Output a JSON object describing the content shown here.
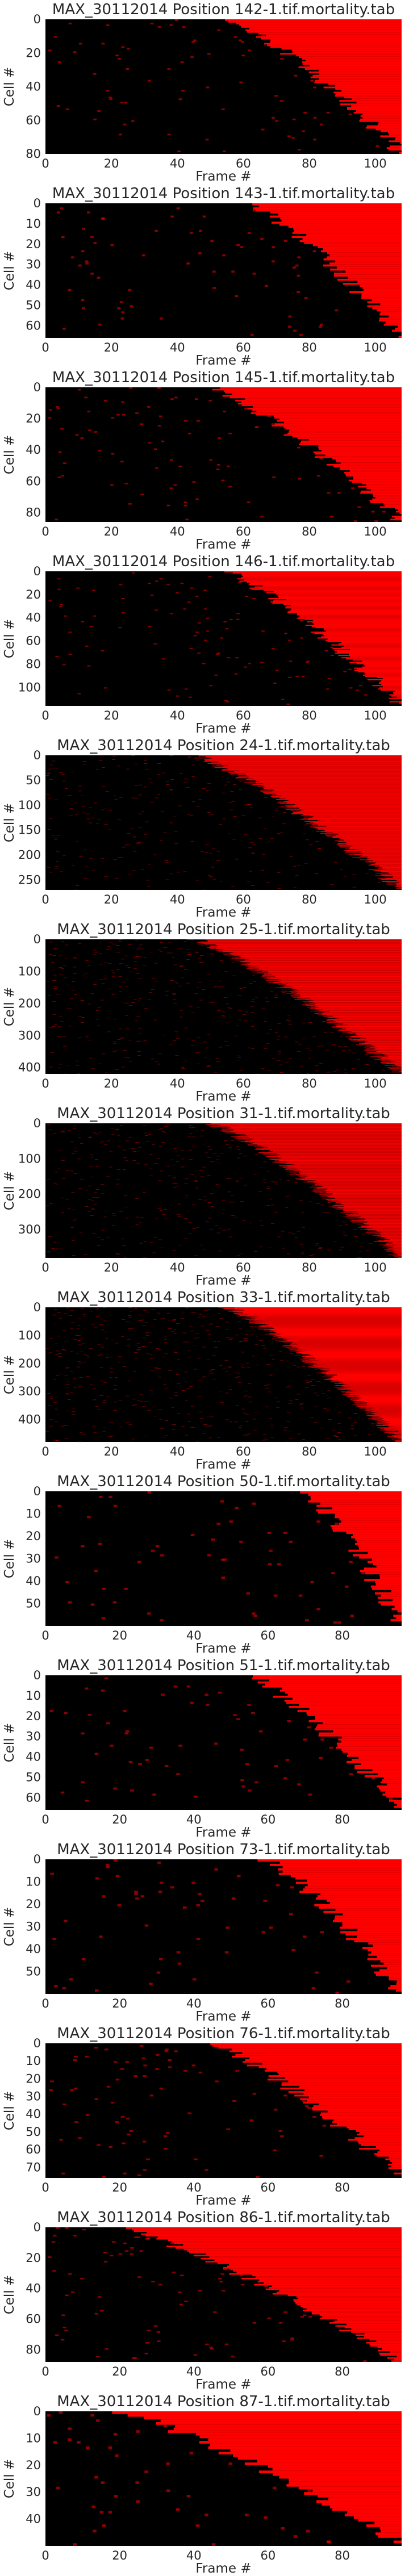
{
  "figure": {
    "background": "#ffffff",
    "text_color": "#262626",
    "heatmap_low_color": "#000000",
    "heatmap_high_color": "#ff0000"
  },
  "chart_data": [
    {
      "type": "heatmap",
      "title": "MAX_30112014 Position 142-1.tif.mortality.tab",
      "xlabel": "Frame #",
      "ylabel": "Cell #",
      "xlim": [
        0,
        108
      ],
      "ylim": [
        0,
        80
      ],
      "xticks": [
        0,
        20,
        40,
        60,
        80,
        100
      ],
      "yticks": [
        0,
        20,
        40,
        60,
        80
      ],
      "rows": 80,
      "frames": 108,
      "values": "binary 0/1 per cell per frame; cells sorted by onset of red state",
      "onset_range": [
        56,
        108
      ],
      "colors": {
        "0": "#000000",
        "1": "#ff0000"
      }
    },
    {
      "type": "heatmap",
      "title": "MAX_30112014 Position 143-1.tif.mortality.tab",
      "xlabel": "Frame #",
      "ylabel": "Cell #",
      "xlim": [
        0,
        108
      ],
      "ylim": [
        0,
        66
      ],
      "xticks": [
        0,
        20,
        40,
        60,
        80,
        100
      ],
      "yticks": [
        0,
        10,
        20,
        30,
        40,
        50,
        60
      ],
      "rows": 66,
      "frames": 108,
      "values": "binary 0/1 per cell per frame; cells sorted by onset of red state",
      "onset_range": [
        62,
        108
      ],
      "colors": {
        "0": "#000000",
        "1": "#ff0000"
      }
    },
    {
      "type": "heatmap",
      "title": "MAX_30112014 Position 145-1.tif.mortality.tab",
      "xlabel": "Frame #",
      "ylabel": "Cell #",
      "xlim": [
        0,
        108
      ],
      "ylim": [
        0,
        86
      ],
      "xticks": [
        0,
        20,
        40,
        60,
        80,
        100
      ],
      "yticks": [
        0,
        20,
        40,
        60,
        80
      ],
      "rows": 86,
      "frames": 108,
      "values": "binary 0/1 per cell per frame; cells sorted by onset of red state",
      "onset_range": [
        50,
        108
      ],
      "colors": {
        "0": "#000000",
        "1": "#ff0000"
      }
    },
    {
      "type": "heatmap",
      "title": "MAX_30112014 Position 146-1.tif.mortality.tab",
      "xlabel": "Frame #",
      "ylabel": "Cell #",
      "xlim": [
        0,
        108
      ],
      "ylim": [
        0,
        116
      ],
      "xticks": [
        0,
        20,
        40,
        60,
        80,
        100
      ],
      "yticks": [
        0,
        20,
        40,
        60,
        80,
        100
      ],
      "rows": 116,
      "frames": 108,
      "values": "binary 0/1 per cell per frame; cells sorted by onset of red state",
      "onset_range": [
        55,
        108
      ],
      "colors": {
        "0": "#000000",
        "1": "#ff0000"
      }
    },
    {
      "type": "heatmap",
      "title": "MAX_30112014 Position 24-1.tif.mortality.tab",
      "xlabel": "Frame #",
      "ylabel": "Cell #",
      "xlim": [
        0,
        108
      ],
      "ylim": [
        0,
        270
      ],
      "xticks": [
        0,
        20,
        40,
        60,
        80,
        100
      ],
      "yticks": [
        0,
        50,
        100,
        150,
        200,
        250
      ],
      "rows": 270,
      "frames": 108,
      "values": "binary 0/1 per cell per frame; cells sorted by onset of red state",
      "onset_range": [
        45,
        108
      ],
      "colors": {
        "0": "#000000",
        "1": "#ff0000"
      }
    },
    {
      "type": "heatmap",
      "title": "MAX_30112014 Position 25-1.tif.mortality.tab",
      "xlabel": "Frame #",
      "ylabel": "Cell #",
      "xlim": [
        0,
        108
      ],
      "ylim": [
        0,
        420
      ],
      "xticks": [
        0,
        20,
        40,
        60,
        80,
        100
      ],
      "yticks": [
        0,
        100,
        200,
        300,
        400
      ],
      "rows": 420,
      "frames": 108,
      "values": "binary 0/1 per cell per frame; cells sorted by onset of red state",
      "onset_range": [
        45,
        108
      ],
      "colors": {
        "0": "#000000",
        "1": "#ff0000"
      }
    },
    {
      "type": "heatmap",
      "title": "MAX_30112014 Position 31-1.tif.mortality.tab",
      "xlabel": "Frame #",
      "ylabel": "Cell #",
      "xlim": [
        0,
        108
      ],
      "ylim": [
        0,
        380
      ],
      "xticks": [
        0,
        20,
        40,
        60,
        80,
        100
      ],
      "yticks": [
        0,
        100,
        200,
        300
      ],
      "rows": 380,
      "frames": 108,
      "values": "binary 0/1 per cell per frame; cells sorted by onset of red state",
      "onset_range": [
        50,
        108
      ],
      "colors": {
        "0": "#000000",
        "1": "#ff0000"
      }
    },
    {
      "type": "heatmap",
      "title": "MAX_30112014 Position 33-1.tif.mortality.tab",
      "xlabel": "Frame #",
      "ylabel": "Cell #",
      "xlim": [
        0,
        108
      ],
      "ylim": [
        0,
        480
      ],
      "xticks": [
        0,
        20,
        40,
        60,
        80,
        100
      ],
      "yticks": [
        0,
        100,
        200,
        300,
        400
      ],
      "rows": 480,
      "frames": 108,
      "values": "binary 0/1 per cell per frame; cells sorted by onset of red state",
      "onset_range": [
        55,
        108
      ],
      "colors": {
        "0": "#000000",
        "1": "#ff0000"
      }
    },
    {
      "type": "heatmap",
      "title": "MAX_30112014 Position 50-1.tif.mortality.tab",
      "xlabel": "Frame #",
      "ylabel": "Cell #",
      "xlim": [
        0,
        96
      ],
      "ylim": [
        0,
        60
      ],
      "xticks": [
        0,
        20,
        40,
        60,
        80
      ],
      "yticks": [
        0,
        10,
        20,
        30,
        40,
        50
      ],
      "rows": 60,
      "frames": 96,
      "values": "binary 0/1 per cell per frame; cells sorted by onset of red state",
      "onset_range": [
        70,
        96
      ],
      "colors": {
        "0": "#000000",
        "1": "#ff0000"
      }
    },
    {
      "type": "heatmap",
      "title": "MAX_30112014 Position 51-1.tif.mortality.tab",
      "xlabel": "Frame #",
      "ylabel": "Cell #",
      "xlim": [
        0,
        96
      ],
      "ylim": [
        0,
        66
      ],
      "xticks": [
        0,
        20,
        40,
        60,
        80
      ],
      "yticks": [
        0,
        10,
        20,
        30,
        40,
        50,
        60
      ],
      "rows": 66,
      "frames": 96,
      "values": "binary 0/1 per cell per frame; cells sorted by onset of red state",
      "onset_range": [
        55,
        96
      ],
      "colors": {
        "0": "#000000",
        "1": "#ff0000"
      }
    },
    {
      "type": "heatmap",
      "title": "MAX_30112014 Position 73-1.tif.mortality.tab",
      "xlabel": "Frame #",
      "ylabel": "Cell #",
      "xlim": [
        0,
        96
      ],
      "ylim": [
        0,
        60
      ],
      "xticks": [
        0,
        20,
        40,
        60,
        80
      ],
      "yticks": [
        0,
        10,
        20,
        30,
        40,
        50
      ],
      "rows": 60,
      "frames": 96,
      "values": "binary 0/1 per cell per frame; cells sorted by onset of red state",
      "onset_range": [
        60,
        96
      ],
      "colors": {
        "0": "#000000",
        "1": "#ff0000"
      }
    },
    {
      "type": "heatmap",
      "title": "MAX_30112014 Position 76-1.tif.mortality.tab",
      "xlabel": "Frame #",
      "ylabel": "Cell #",
      "xlim": [
        0,
        96
      ],
      "ylim": [
        0,
        76
      ],
      "xticks": [
        0,
        20,
        40,
        60,
        80
      ],
      "yticks": [
        0,
        10,
        20,
        30,
        40,
        50,
        60,
        70
      ],
      "rows": 76,
      "frames": 96,
      "values": "binary 0/1 per cell per frame; cells sorted by onset of red state",
      "onset_range": [
        45,
        96
      ],
      "colors": {
        "0": "#000000",
        "1": "#ff0000"
      }
    },
    {
      "type": "heatmap",
      "title": "MAX_30112014 Position 86-1.tif.mortality.tab",
      "xlabel": "Frame #",
      "ylabel": "Cell #",
      "xlim": [
        0,
        96
      ],
      "ylim": [
        0,
        88
      ],
      "xticks": [
        0,
        20,
        40,
        60,
        80
      ],
      "yticks": [
        0,
        20,
        40,
        60,
        80
      ],
      "rows": 88,
      "frames": 96,
      "values": "binary 0/1 per cell per frame; cells sorted by onset of red state",
      "onset_range": [
        20,
        96
      ],
      "colors": {
        "0": "#000000",
        "1": "#ff0000"
      }
    },
    {
      "type": "heatmap",
      "title": "MAX_30112014 Position 87-1.tif.mortality.tab",
      "xlabel": "Frame #",
      "ylabel": "Cell #",
      "xlim": [
        0,
        96
      ],
      "ylim": [
        0,
        50
      ],
      "xticks": [
        0,
        20,
        40,
        60,
        80
      ],
      "yticks": [
        0,
        10,
        20,
        30,
        40
      ],
      "rows": 50,
      "frames": 96,
      "values": "binary 0/1 per cell per frame; cells sorted by onset of red state",
      "onset_range": [
        20,
        96
      ],
      "colors": {
        "0": "#000000",
        "1": "#ff0000"
      }
    }
  ]
}
